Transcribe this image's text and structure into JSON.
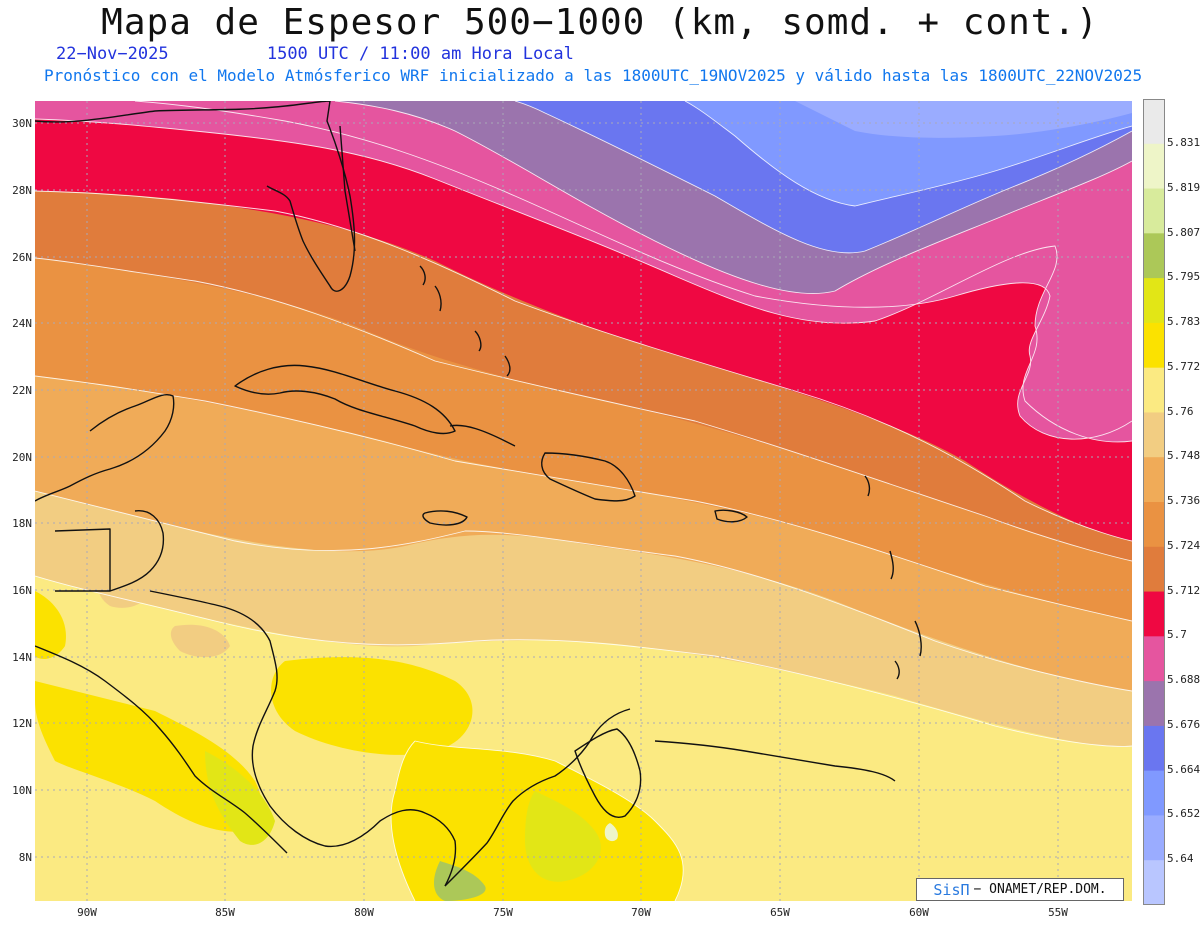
{
  "header": {
    "title": "Mapa de Espesor 500−1000 (km, somd. + cont.)",
    "date": "22−Nov−2025",
    "time": "1500 UTC / 11:00 am Hora Local",
    "description": "Pronóstico con el Modelo Atmósferico WRF inicializado a las 1800UTC_19NOV2025 y válido hasta las  1800UTC_22NOV2025"
  },
  "axes": {
    "lat_labels": [
      "30N",
      "28N",
      "26N",
      "24N",
      "22N",
      "20N",
      "18N",
      "16N",
      "14N",
      "12N",
      "10N",
      "8N"
    ],
    "lon_labels": [
      "90W",
      "85W",
      "80W",
      "75W",
      "70W",
      "65W",
      "60W",
      "55W"
    ]
  },
  "colorbar": {
    "labels": [
      "5.831",
      "5.819",
      "5.807",
      "5.795",
      "5.783",
      "5.772",
      "5.76",
      "5.748",
      "5.736",
      "5.724",
      "5.712",
      "5.7",
      "5.688",
      "5.676",
      "5.664",
      "5.652",
      "5.64"
    ],
    "colors": [
      "#b9c6ff",
      "#9aacff",
      "#8099ff",
      "#6a76f0",
      "#9b74ad",
      "#e5559f",
      "#ef0842",
      "#e07c3c",
      "#ea9242",
      "#f0ab58",
      "#f2cd82",
      "#fbea82",
      "#fbe200",
      "#e2e616",
      "#acc858",
      "#d8eb9c",
      "#eef5c8",
      "#eaeaea"
    ]
  },
  "credit": {
    "brand": "SisΠ",
    "text": "− ONAMET/REP.DOM."
  }
}
